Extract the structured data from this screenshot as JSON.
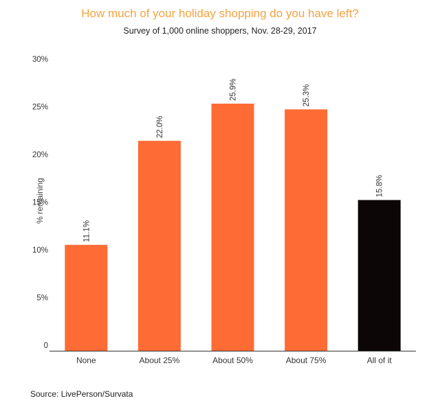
{
  "chart_data": {
    "type": "bar",
    "title": "How much of your holiday shopping do you have left?",
    "subtitle": "Survey of 1,000 online shoppers, Nov. 28-29, 2017",
    "xlabel": "",
    "ylabel": "% remaining",
    "categories": [
      "None",
      "About 25%",
      "About 50%",
      "About 75%",
      "All of it"
    ],
    "values": [
      11.1,
      22.0,
      25.9,
      25.3,
      15.8
    ],
    "data_labels": [
      "11.1%",
      "22.0%",
      "25.9%",
      "25.3%",
      "15.8%"
    ],
    "bar_colors": [
      "#ff6b35",
      "#ff6b35",
      "#ff6b35",
      "#ff6b35",
      "#0d0606"
    ],
    "ylim": [
      0,
      30
    ],
    "yticks": [
      0,
      5,
      10,
      15,
      20,
      25,
      30
    ],
    "ytick_labels": [
      "0",
      "5%",
      "10%",
      "15%",
      "20%",
      "25%",
      "30%"
    ],
    "grid": false,
    "legend": "none",
    "source": "Source: LivePerson/Survata"
  },
  "colors": {
    "title": "#f4a340",
    "bar": "#ff6b35",
    "highlight": "#0d0606",
    "axis": "#333333"
  }
}
